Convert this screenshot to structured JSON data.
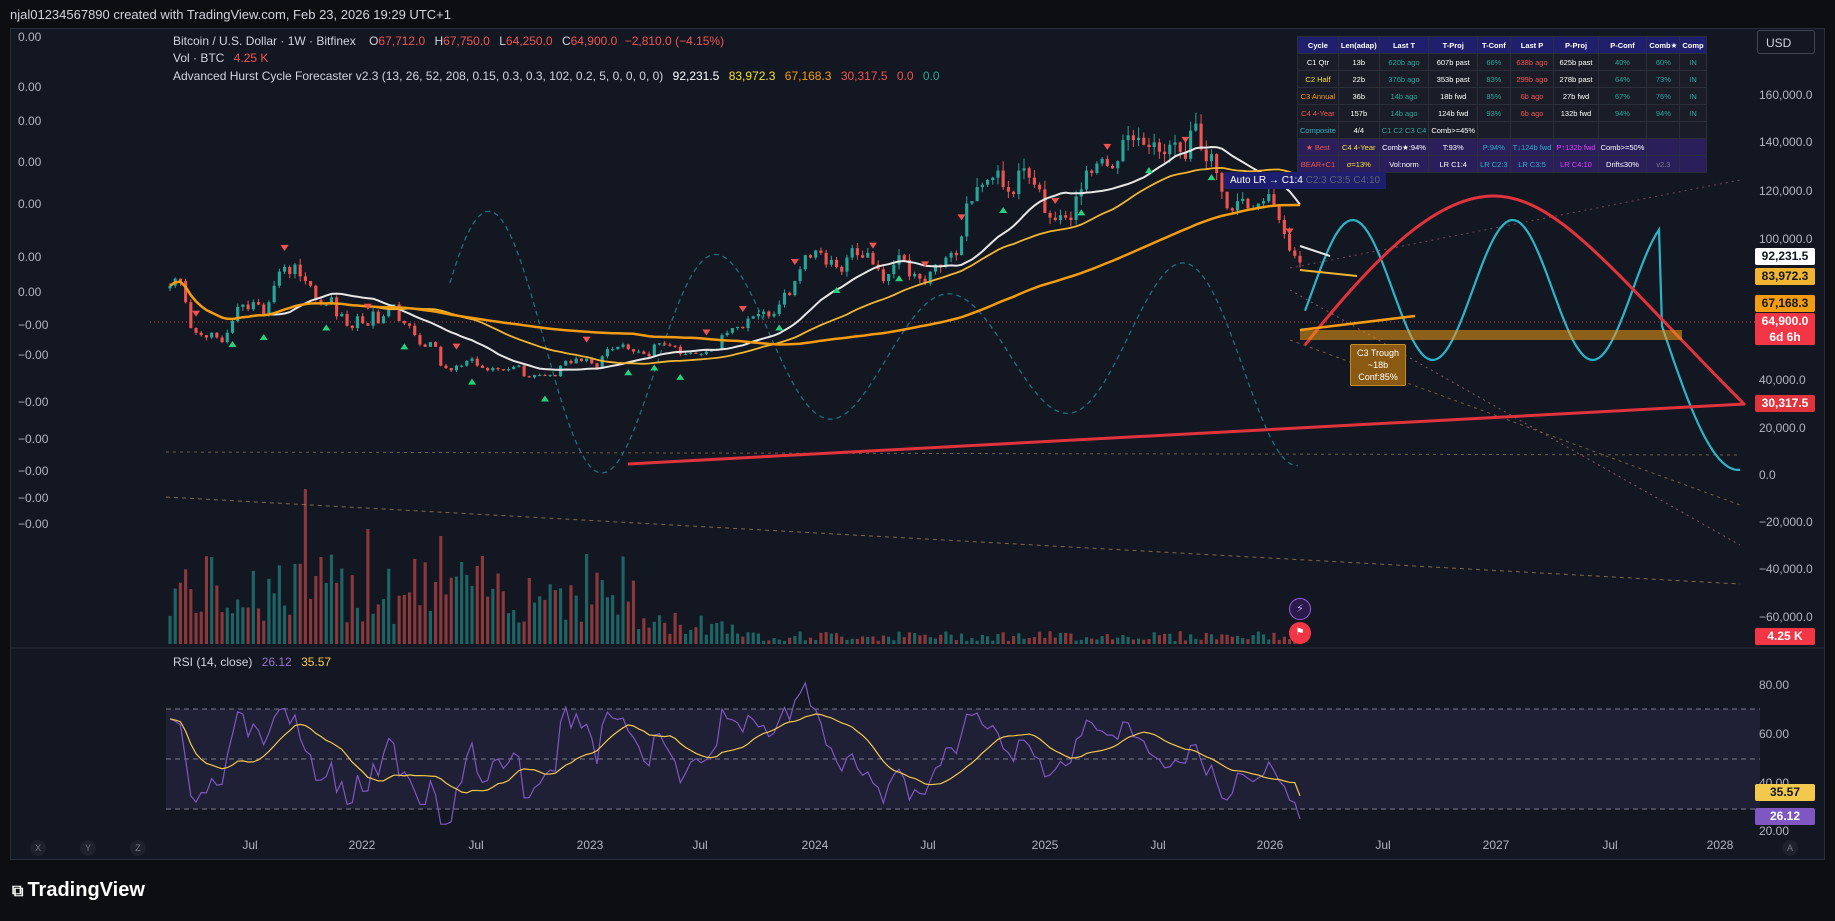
{
  "header": {
    "created_by": "njal01234567890 created with TradingView.com, Feb 23, 2026 19:29 UTC+1"
  },
  "legend": {
    "symbol": "Bitcoin / U.S. Dollar · 1W · Bitfinex",
    "o_label": "O",
    "o_value": "67,712.0",
    "h_label": "H",
    "h_value": "67,750.0",
    "l_label": "L",
    "l_value": "64,250.0",
    "c_label": "C",
    "c_value": "64,900.0",
    "change": "−2,810.0 (−4.15%)",
    "vol_label": "Vol · BTC",
    "vol_value": "4.25 K",
    "indicator_name": "Advanced Hurst Cycle Forecaster v2.3 (13, 26, 52, 208, 0.15, 0.3, 0.3, 102, 0.2, 5, 0, 0, 0, 0)",
    "ind_values": [
      "92,231.5",
      "83,972.3",
      "67,168.3",
      "30,317.5",
      "0.0",
      "0.0"
    ]
  },
  "left_axis_labels": [
    "0.00",
    "0.00",
    "0.00",
    "0.00",
    "0.00",
    "0.00",
    "0.00",
    "−0.00",
    "−0.00",
    "−0.00",
    "−0.00",
    "−0.00",
    "−0.00",
    "−0.00"
  ],
  "right_axis": {
    "currency": "USD",
    "ticks": [
      "160,000.0",
      "140,000.0",
      "120,000.0",
      "100,000.0",
      "40,000.0",
      "20,000.0",
      "0.0",
      "−20,000.0",
      "−40,000.0",
      "−60,000.0"
    ],
    "badges": {
      "b92": "92,231.5",
      "b84": "83,972.3",
      "b67": "67,168.3",
      "b65": "64,900.0",
      "countdown": "6d 6h",
      "b30": "30,317.5",
      "vol": "4.25 K"
    },
    "rsi_ticks": [
      "80.00",
      "60.00",
      "40.00",
      "20.00"
    ],
    "rsi_badges": {
      "ma": "35.57",
      "rsi": "26.12"
    }
  },
  "x_axis": [
    "Jul",
    "2022",
    "Jul",
    "2023",
    "Jul",
    "2024",
    "Jul",
    "2025",
    "Jul",
    "2026",
    "Jul",
    "2027",
    "Jul",
    "2028"
  ],
  "x_axis_buttons": [
    "X",
    "Y",
    "Z",
    "A"
  ],
  "rsi": {
    "label": "RSI (14, close)",
    "value": "26.12",
    "ma_value": "35.57"
  },
  "forecast_box": {
    "title": "C3 Trough",
    "line2": "~18b",
    "line3": "Conf:85%"
  },
  "auto_lr": {
    "label": "Auto LR → C1:4",
    "rest": "C2:3 C3:5 C4:10"
  },
  "cycle_table": {
    "header": [
      "Cycle",
      "Len(adap)",
      "Last T",
      "T-Proj",
      "T-Conf",
      "Last P",
      "P-Proj",
      "P-Conf",
      "Comb★",
      "Comp"
    ],
    "rows": [
      [
        "C1 Qtr",
        "13b",
        "620b ago",
        "607b past",
        "66%",
        "638b ago",
        "625b past",
        "40%",
        "60%",
        "IN"
      ],
      [
        "C2 Half",
        "22b",
        "376b ago",
        "353b past",
        "83%",
        "299b ago",
        "278b past",
        "64%",
        "73%",
        "IN"
      ],
      [
        "C3 Annual",
        "36b",
        "14b ago",
        "18b fwd",
        "85%",
        "6b ago",
        "27b fwd",
        "67%",
        "76%",
        "IN"
      ],
      [
        "C4 4-Year",
        "157b",
        "14b ago",
        "124b fwd",
        "93%",
        "6b ago",
        "132b fwd",
        "94%",
        "94%",
        "IN"
      ],
      [
        "Composite",
        "4/4",
        "C1 C2 C3 C4",
        "Comb>=45%",
        "",
        "",
        "",
        "",
        "",
        ""
      ],
      [
        "★ Best",
        "C4 4-Year",
        "Comb★:94%",
        "T:93%",
        "P:94%",
        "T↓124b fwd",
        "P↑132b fwd",
        "Comb>=50%",
        "",
        ""
      ],
      [
        "BEAR+C1",
        "σ=13%",
        "Vol:norm",
        "LR C1:4",
        "LR C2:3",
        "LR C3:5",
        "LR C4:10",
        "Drift≤30%",
        "v2.3",
        ""
      ]
    ]
  },
  "colors": {
    "up": "#26a69a",
    "down": "#ef5350",
    "white_ma": "#e6e6e6",
    "yellow_ma": "#f2b531",
    "orange_ma": "#f39c12",
    "red_line": "#e0333c",
    "cyan_wave": "#2bb4c8",
    "rsi": "#7e57c2",
    "rsi_ma": "#f2c94c"
  },
  "footer": {
    "brand": "TradingView"
  }
}
